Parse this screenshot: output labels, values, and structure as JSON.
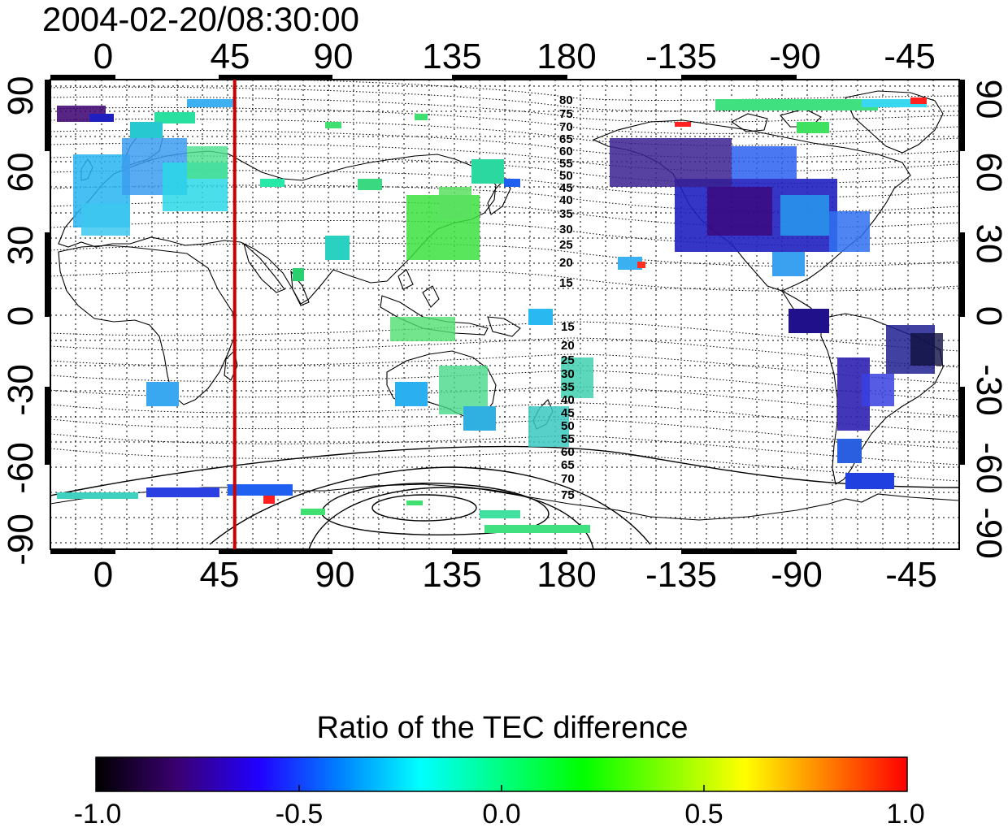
{
  "title": "2004-02-20/08:30:00",
  "x_ticks_top": [
    "0",
    "45",
    "90",
    "135",
    "180",
    "-135",
    "-90",
    "-45"
  ],
  "x_ticks_bottom": [
    "0",
    "45",
    "90",
    "135",
    "180",
    "-135",
    "-90",
    "-45"
  ],
  "y_ticks_left": [
    "90",
    "60",
    "30",
    "0",
    "-30",
    "-60",
    "-90"
  ],
  "y_ticks_right": [
    "90",
    "60",
    "30",
    "0",
    "-30",
    "-60",
    "-90"
  ],
  "contour_labels_north": [
    "80",
    "75",
    "70",
    "65",
    "60",
    "55",
    "50",
    "45",
    "40",
    "35",
    "30",
    "25",
    "20",
    "15"
  ],
  "contour_labels_south": [
    "15",
    "20",
    "25",
    "30",
    "35",
    "40",
    "45",
    "50",
    "55",
    "60",
    "65",
    "70",
    "75"
  ],
  "colorbar": {
    "title": "Ratio of the TEC difference",
    "ticks": [
      "-1.0",
      "-0.5",
      "0.0",
      "0.5",
      "1.0"
    ],
    "range": [
      -1.0,
      1.0
    ],
    "colors": [
      "#000000",
      "#3a0070",
      "#2200ff",
      "#0080ff",
      "#00ffff",
      "#00ff80",
      "#00ff00",
      "#80ff00",
      "#ffff00",
      "#ff8000",
      "#ff0000"
    ]
  },
  "map": {
    "lon_range": [
      -20,
      340
    ],
    "lat_range": [
      -90,
      90
    ],
    "marker_longitude": 53,
    "marker_color": "#cc0000"
  }
}
